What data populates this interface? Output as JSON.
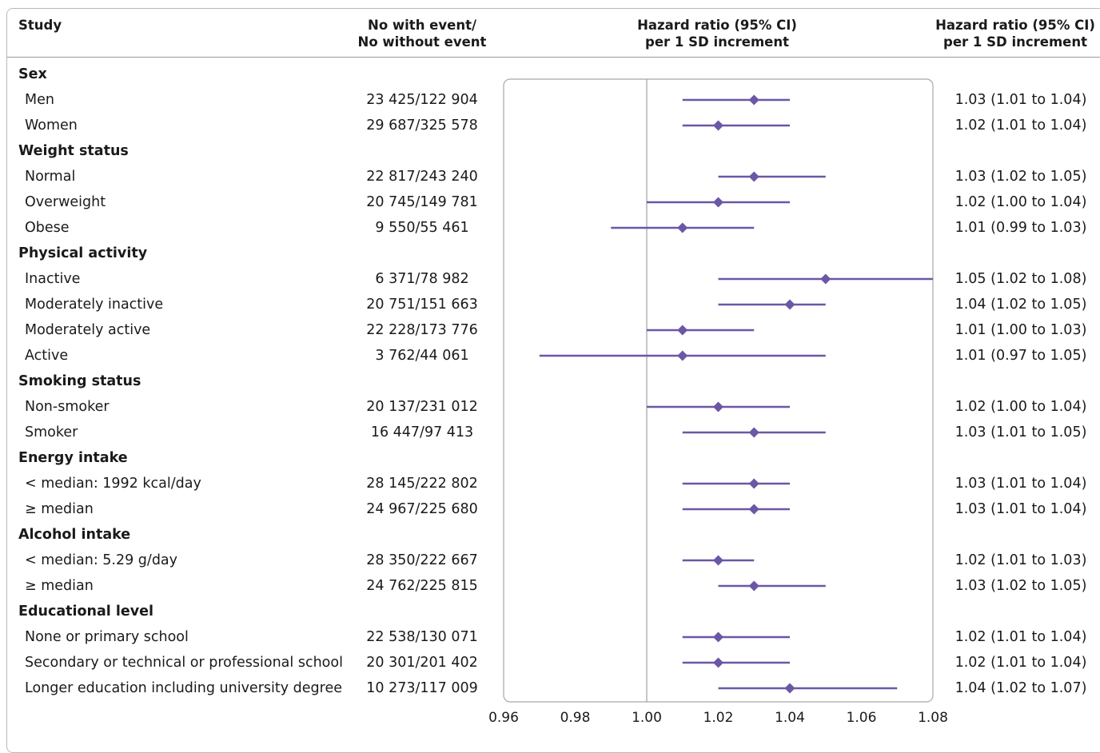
{
  "header": {
    "study": "Study",
    "n_line1": "No with event/",
    "n_line2": "No without event",
    "plot_line1": "Hazard ratio (95% CI)",
    "plot_line2": "per 1 SD increment",
    "ci_line1": "Hazard ratio (95% CI)",
    "ci_line2": "per 1 SD increment"
  },
  "chart_data": {
    "type": "forest",
    "x_axis": {
      "range": [
        0.96,
        1.08
      ],
      "reference": 1.0,
      "ticks": [
        "0.96",
        "0.98",
        "1.00",
        "1.02",
        "1.04",
        "1.06",
        "1.08"
      ]
    },
    "colors": {
      "marker": "#6b57a6",
      "reference_line": "#a0a0a0",
      "panel_border": "#a8a8a8"
    },
    "rows": [
      {
        "kind": "group",
        "label": "Sex"
      },
      {
        "kind": "item",
        "label": "Men",
        "n": "23 425/122 904",
        "hr": 1.03,
        "lo": 1.01,
        "hi": 1.04,
        "ci_text": "1.03 (1.01 to 1.04)"
      },
      {
        "kind": "item",
        "label": "Women",
        "n": "29 687/325 578",
        "hr": 1.02,
        "lo": 1.01,
        "hi": 1.04,
        "ci_text": "1.02 (1.01 to 1.04)"
      },
      {
        "kind": "group",
        "label": "Weight status"
      },
      {
        "kind": "item",
        "label": "Normal",
        "n": "22 817/243 240",
        "hr": 1.03,
        "lo": 1.02,
        "hi": 1.05,
        "ci_text": "1.03 (1.02 to 1.05)"
      },
      {
        "kind": "item",
        "label": "Overweight",
        "n": "20 745/149 781",
        "hr": 1.02,
        "lo": 1.0,
        "hi": 1.04,
        "ci_text": "1.02 (1.00 to 1.04)"
      },
      {
        "kind": "item",
        "label": "Obese",
        "n": "9 550/55 461",
        "hr": 1.01,
        "lo": 0.99,
        "hi": 1.03,
        "ci_text": "1.01 (0.99 to 1.03)"
      },
      {
        "kind": "group",
        "label": "Physical activity"
      },
      {
        "kind": "item",
        "label": "Inactive",
        "n": "6 371/78 982",
        "hr": 1.05,
        "lo": 1.02,
        "hi": 1.08,
        "ci_text": "1.05 (1.02 to 1.08)"
      },
      {
        "kind": "item",
        "label": "Moderately inactive",
        "n": "20 751/151 663",
        "hr": 1.04,
        "lo": 1.02,
        "hi": 1.05,
        "ci_text": "1.04 (1.02 to 1.05)"
      },
      {
        "kind": "item",
        "label": "Moderately active",
        "n": "22 228/173 776",
        "hr": 1.01,
        "lo": 1.0,
        "hi": 1.03,
        "ci_text": "1.01 (1.00 to 1.03)"
      },
      {
        "kind": "item",
        "label": "Active",
        "n": "3 762/44 061",
        "hr": 1.01,
        "lo": 0.97,
        "hi": 1.05,
        "ci_text": "1.01 (0.97 to 1.05)"
      },
      {
        "kind": "group",
        "label": "Smoking status"
      },
      {
        "kind": "item",
        "label": "Non-smoker",
        "n": "20 137/231 012",
        "hr": 1.02,
        "lo": 1.0,
        "hi": 1.04,
        "ci_text": "1.02 (1.00 to 1.04)"
      },
      {
        "kind": "item",
        "label": "Smoker",
        "n": "16 447/97 413",
        "hr": 1.03,
        "lo": 1.01,
        "hi": 1.05,
        "ci_text": "1.03 (1.01 to 1.05)"
      },
      {
        "kind": "group",
        "label": "Energy intake"
      },
      {
        "kind": "item",
        "label": "< median: 1992 kcal/day",
        "n": "28 145/222 802",
        "hr": 1.03,
        "lo": 1.01,
        "hi": 1.04,
        "ci_text": "1.03 (1.01 to 1.04)"
      },
      {
        "kind": "item",
        "label": "≥ median",
        "n": "24 967/225 680",
        "hr": 1.03,
        "lo": 1.01,
        "hi": 1.04,
        "ci_text": "1.03 (1.01 to 1.04)"
      },
      {
        "kind": "group",
        "label": "Alcohol intake"
      },
      {
        "kind": "item",
        "label": "< median: 5.29 g/day",
        "n": "28 350/222 667",
        "hr": 1.02,
        "lo": 1.01,
        "hi": 1.03,
        "ci_text": "1.02 (1.01 to 1.03)"
      },
      {
        "kind": "item",
        "label": "≥ median",
        "n": "24 762/225 815",
        "hr": 1.03,
        "lo": 1.02,
        "hi": 1.05,
        "ci_text": "1.03 (1.02 to 1.05)"
      },
      {
        "kind": "group",
        "label": "Educational level"
      },
      {
        "kind": "item",
        "label": "None or primary school",
        "n": "22 538/130 071",
        "hr": 1.02,
        "lo": 1.01,
        "hi": 1.04,
        "ci_text": "1.02 (1.01 to 1.04)"
      },
      {
        "kind": "item",
        "label": "Secondary or technical or professional school",
        "n": "20 301/201 402",
        "hr": 1.02,
        "lo": 1.01,
        "hi": 1.04,
        "ci_text": "1.02 (1.01 to 1.04)"
      },
      {
        "kind": "item",
        "label": "Longer education including university degree",
        "n": "10 273/117 009",
        "hr": 1.04,
        "lo": 1.02,
        "hi": 1.07,
        "ci_text": "1.04 (1.02 to 1.07)"
      }
    ]
  }
}
